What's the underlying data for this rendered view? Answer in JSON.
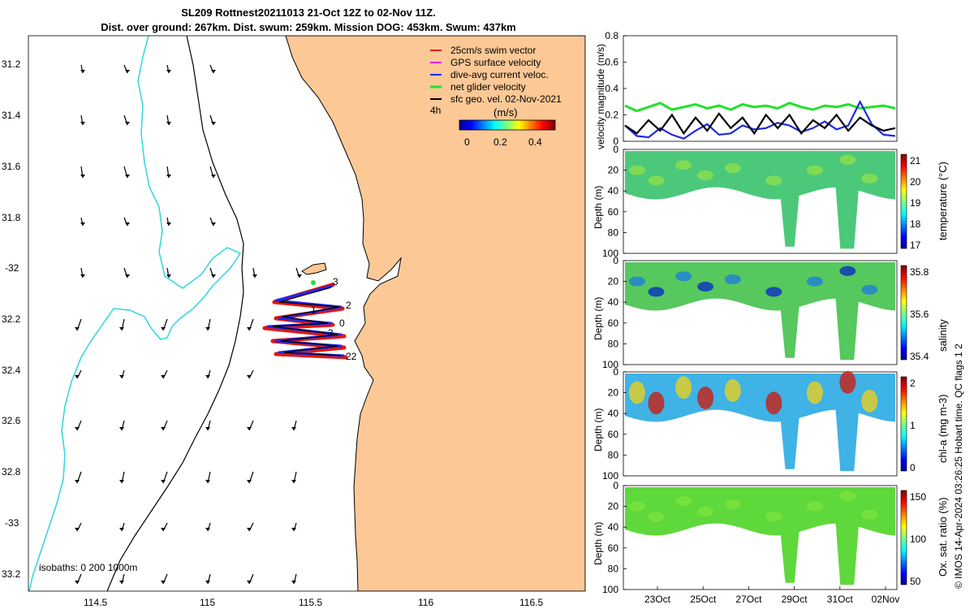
{
  "title_line1": "SL209 Rottnest20211013 21-Oct 12Z to 02-Nov 11Z.",
  "title_line2": "Dist. over ground: 267km. Dist. swum: 259km. Mission DOG: 453km. Swum: 437km",
  "map": {
    "lon_ticks": [
      "114.5",
      "115",
      "115.5",
      "116",
      "116.5"
    ],
    "lat_ticks": [
      "31.2",
      "31.4",
      "31.6",
      "31.8",
      "-32",
      "32.2",
      "32.4",
      "32.6",
      "32.8",
      "-33",
      "33.2"
    ],
    "legend": [
      {
        "label": "25cm/s swim vector",
        "color": "#e8140c"
      },
      {
        "label": "GPS surface velocity",
        "color": "#e020e0"
      },
      {
        "label": "dive-avg current veloc.",
        "color": "#1e28e6"
      },
      {
        "label": "net glider velocity",
        "color": "#22e22a"
      },
      {
        "label": "sfc geo. vel. 02-Nov-2021",
        "color": "#000000"
      }
    ],
    "legend_4h": "4h",
    "cbar_unit": "(m/s)",
    "cbar_ticks": [
      "0",
      "0.2",
      "0.4"
    ],
    "isobath_label": "isobaths: 0   200  1000m",
    "track_labels": [
      "3",
      "2",
      "1",
      "0",
      "3",
      "22"
    ]
  },
  "chart_data": [
    {
      "type": "line",
      "title": "",
      "ylabel": "velocity magnitude (m/s)",
      "ylim": [
        0,
        0.8
      ],
      "yticks": [
        "0",
        "0.2",
        "0.4",
        "0.6",
        "0.8"
      ],
      "series": [
        {
          "name": "net glider velocity",
          "color": "#22e22a",
          "values": [
            0.27,
            0.23,
            0.26,
            0.29,
            0.24,
            0.26,
            0.28,
            0.25,
            0.27,
            0.24,
            0.28,
            0.26,
            0.27,
            0.25,
            0.29,
            0.26,
            0.24,
            0.27,
            0.26,
            0.28,
            0.25,
            0.26,
            0.27,
            0.25
          ]
        },
        {
          "name": "dive-avg current veloc.",
          "color": "#1e28e6",
          "values": [
            0.12,
            0.04,
            0.03,
            0.1,
            0.05,
            0.02,
            0.08,
            0.13,
            0.05,
            0.06,
            0.12,
            0.09,
            0.1,
            0.14,
            0.12,
            0.07,
            0.1,
            0.15,
            0.09,
            0.12,
            0.3,
            0.13,
            0.05,
            0.04
          ]
        },
        {
          "name": "sfc geo. vel.",
          "color": "#000000",
          "values": [
            0.12,
            0.06,
            0.16,
            0.08,
            0.2,
            0.06,
            0.18,
            0.08,
            0.21,
            0.1,
            0.18,
            0.06,
            0.2,
            0.1,
            0.2,
            0.06,
            0.16,
            0.1,
            0.2,
            0.08,
            0.18,
            0.12,
            0.08,
            0.1
          ]
        }
      ]
    },
    {
      "type": "heatmap",
      "ylabel": "Depth (m)",
      "clabel": "temperature (°C)",
      "yticks": [
        "0",
        "20",
        "40",
        "60",
        "80",
        "100"
      ],
      "cticks": [
        "17",
        "18",
        "19",
        "20",
        "21"
      ]
    },
    {
      "type": "heatmap",
      "ylabel": "Depth (m)",
      "clabel": "salinity",
      "yticks": [
        "0",
        "20",
        "40",
        "60",
        "80",
        "100"
      ],
      "cticks": [
        "35.4",
        "35.6",
        "35.8"
      ]
    },
    {
      "type": "heatmap",
      "ylabel": "Depth (m)",
      "clabel": "chl-a (mg m-3)",
      "yticks": [
        "0",
        "20",
        "40",
        "60",
        "80",
        "100"
      ],
      "cticks": [
        "0",
        "1",
        "2"
      ]
    },
    {
      "type": "heatmap",
      "ylabel": "Depth (m)",
      "clabel": "Ox. sat. ratio (%)",
      "yticks": [
        "0",
        "20",
        "40",
        "60",
        "80",
        "100"
      ],
      "cticks": [
        "50",
        "100",
        "150"
      ]
    }
  ],
  "time_ticks": [
    "23Oct",
    "25Oct",
    "27Oct",
    "29Oct",
    "31Oct",
    "02Nov"
  ],
  "credit": "© IMOS 14-Apr-2024 03:26:25 Hobart time. QC flags 1  2",
  "colors": {
    "land": "#fbc896",
    "isobath_200": "#000000",
    "isobath_1000": "#2fd6e0"
  }
}
